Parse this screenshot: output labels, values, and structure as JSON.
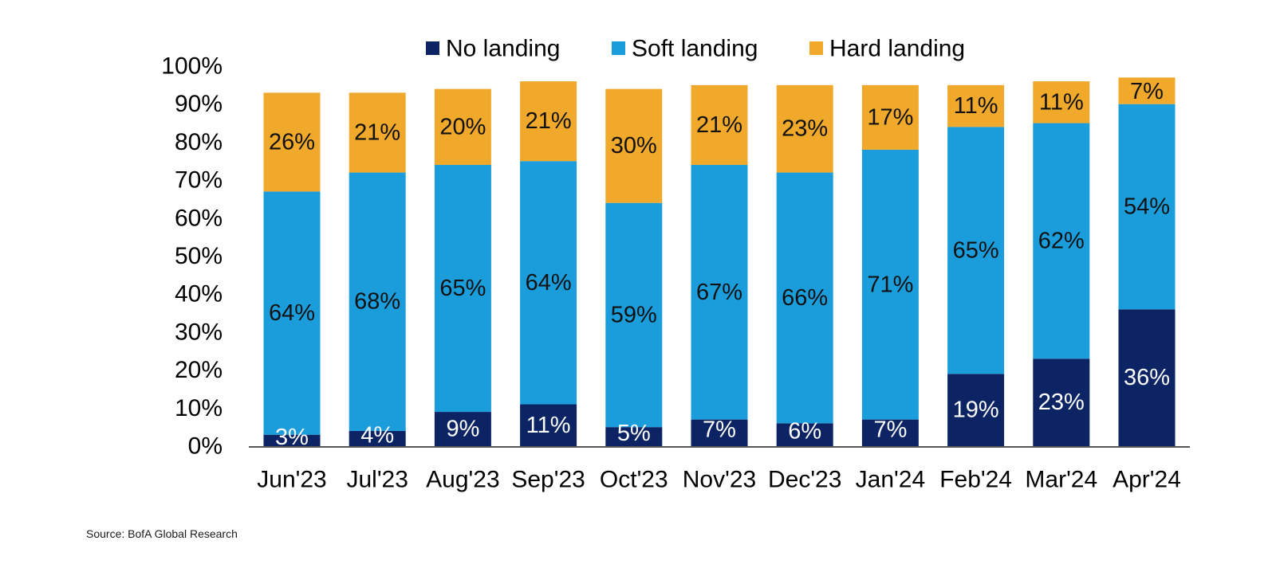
{
  "chart_data": {
    "type": "bar",
    "stacked": true,
    "categories": [
      "Jun'23",
      "Jul'23",
      "Aug'23",
      "Sep'23",
      "Oct'23",
      "Nov'23",
      "Dec'23",
      "Jan'24",
      "Feb'24",
      "Mar'24",
      "Apr'24"
    ],
    "series": [
      {
        "name": "No landing",
        "color": "#0d2464",
        "label_color": "#ffffff",
        "values": [
          3,
          4,
          9,
          11,
          5,
          7,
          6,
          7,
          19,
          23,
          36
        ],
        "labels": [
          "3%",
          "4%",
          "9%",
          "11%",
          "5%",
          "7%",
          "6%",
          "7%",
          "19%",
          "23%",
          "36%"
        ]
      },
      {
        "name": "Soft landing",
        "color": "#1c9ddb",
        "label_color": "#111111",
        "values": [
          64,
          68,
          65,
          64,
          59,
          67,
          66,
          71,
          65,
          62,
          54
        ],
        "labels": [
          "64%",
          "68%",
          "65%",
          "64%",
          "59%",
          "67%",
          "66%",
          "71%",
          "65%",
          "62%",
          "54%"
        ]
      },
      {
        "name": "Hard landing",
        "color": "#f0a92b",
        "label_color": "#111111",
        "values": [
          26,
          21,
          20,
          21,
          30,
          21,
          23,
          17,
          11,
          11,
          7
        ],
        "labels": [
          "26%",
          "21%",
          "20%",
          "21%",
          "30%",
          "21%",
          "23%",
          "17%",
          "11%",
          "11%",
          "7%"
        ]
      }
    ],
    "y_ticks": [
      "0%",
      "10%",
      "20%",
      "30%",
      "40%",
      "50%",
      "60%",
      "70%",
      "80%",
      "90%",
      "100%"
    ],
    "ylim": [
      0,
      100
    ],
    "grid": false,
    "legend_position": "top"
  },
  "source_note": "Source: BofA Global Research"
}
